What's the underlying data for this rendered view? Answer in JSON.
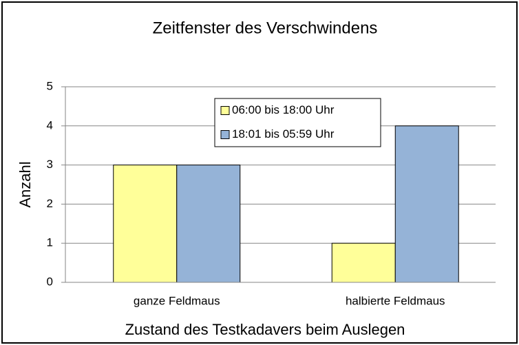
{
  "chart_data": {
    "type": "bar",
    "title": "Zeitfenster des Verschwindens",
    "x_label": "Zustand des Testkadavers beim Auslegen",
    "y_label": "Anzahl",
    "categories": [
      "ganze Feldmaus",
      "halbierte Feldmaus"
    ],
    "series": [
      {
        "name": "06:00 bis 18:00 Uhr",
        "color": "#ffff99",
        "values": [
          3,
          1
        ]
      },
      {
        "name": "18:01 bis 05:59 Uhr",
        "color": "#95b3d7",
        "values": [
          3,
          4
        ]
      }
    ],
    "ylim": [
      0,
      5
    ],
    "yticks": [
      0,
      1,
      2,
      3,
      4,
      5
    ],
    "grid": true,
    "legend": "top"
  }
}
